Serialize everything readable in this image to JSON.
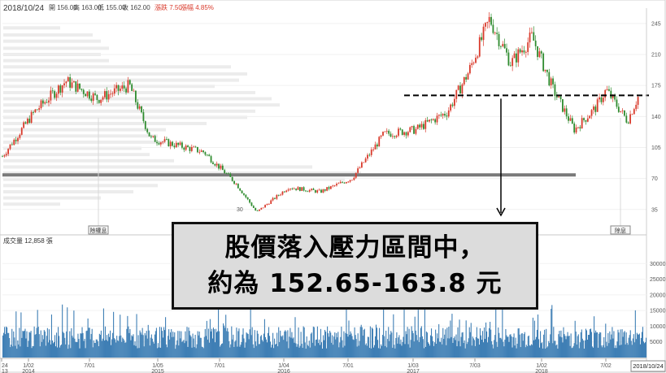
{
  "header": {
    "date": "2018/10/24",
    "open": "開 156.00",
    "high": "高 163.00",
    "low": "低 155.00",
    "close": "收 162.00",
    "change": "漲跌 7.50",
    "change_pct": "漲幅 4.85%"
  },
  "colors": {
    "up": "#d93a2b",
    "down": "#2e8b2e",
    "volume": "#3f7fb5",
    "resistance_line": "#000000",
    "support_line": "#7a7a7a",
    "profile_bar": "#ececec"
  },
  "callout": {
    "line1": "股價落入壓力區間中，",
    "line2": "約為 152.65-163.8 元"
  },
  "chart_data": [
    {
      "type": "candlestick",
      "title": "",
      "ylim": [
        10,
        255
      ],
      "y_ticks": [
        "245",
        "210",
        "175",
        "140",
        "105",
        "70",
        "35"
      ],
      "y_tick_values": [
        245,
        210,
        175,
        140,
        105,
        70,
        35
      ],
      "low_marker": "30",
      "markers": [
        "除權息",
        "除息"
      ],
      "resistance_level": 163.8,
      "support_level": 74,
      "trend_points": [
        {
          "x": "2013/10",
          "y": 95
        },
        {
          "x": "2014/01",
          "y": 145
        },
        {
          "x": "2014/04",
          "y": 180
        },
        {
          "x": "2014/07",
          "y": 160
        },
        {
          "x": "2014/10",
          "y": 175
        },
        {
          "x": "2014/12",
          "y": 115
        },
        {
          "x": "2015/05",
          "y": 100
        },
        {
          "x": "2015/08",
          "y": 65
        },
        {
          "x": "2015/10",
          "y": 32
        },
        {
          "x": "2016/01",
          "y": 60
        },
        {
          "x": "2016/04",
          "y": 55
        },
        {
          "x": "2016/07",
          "y": 70
        },
        {
          "x": "2016/10",
          "y": 120
        },
        {
          "x": "2017/01",
          "y": 125
        },
        {
          "x": "2017/04",
          "y": 145
        },
        {
          "x": "2017/06",
          "y": 190
        },
        {
          "x": "2017/08",
          "y": 250
        },
        {
          "x": "2017/10",
          "y": 200
        },
        {
          "x": "2017/12",
          "y": 230
        },
        {
          "x": "2018/02",
          "y": 170
        },
        {
          "x": "2018/04",
          "y": 125
        },
        {
          "x": "2018/06",
          "y": 150
        },
        {
          "x": "2018/07",
          "y": 170
        },
        {
          "x": "2018/09",
          "y": 135
        },
        {
          "x": "2018/10",
          "y": 162
        }
      ]
    },
    {
      "type": "bar",
      "title": "成交量 12,858 張",
      "ylim": [
        0,
        35000
      ],
      "y_ticks": [
        "30000",
        "25000",
        "20000",
        "15000",
        "10000",
        "5000"
      ],
      "y_tick_values": [
        30000,
        25000,
        20000,
        15000,
        10000,
        5000
      ],
      "x_ticks": [
        {
          "label": "24",
          "sub": "13"
        },
        {
          "label": "1/02",
          "sub": "2014"
        },
        {
          "label": "7/01",
          "sub": ""
        },
        {
          "label": "1/05",
          "sub": "2015"
        },
        {
          "label": "7/01",
          "sub": ""
        },
        {
          "label": "1/04",
          "sub": "2016"
        },
        {
          "label": "7/01",
          "sub": ""
        },
        {
          "label": "1/03",
          "sub": "2017"
        },
        {
          "label": "7/03",
          "sub": ""
        },
        {
          "label": "1/02",
          "sub": "2018"
        },
        {
          "label": "7/02",
          "sub": ""
        }
      ],
      "x_end_label": "2018/10/24",
      "typical_volume": 8000,
      "peak_volume": 17000
    }
  ]
}
